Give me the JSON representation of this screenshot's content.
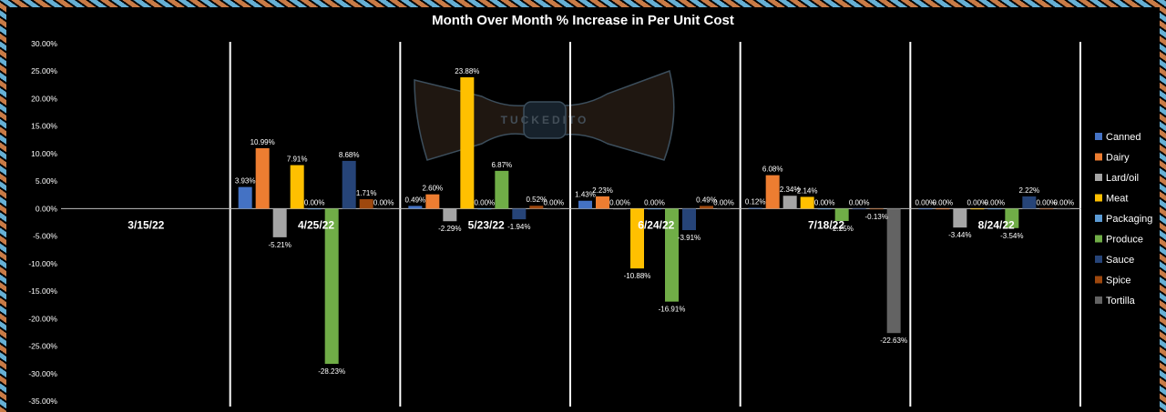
{
  "chart_data": {
    "type": "bar",
    "title": "Month Over Month % Increase in Per Unit Cost",
    "watermark": "TUCKEDITO",
    "xlabel": "",
    "ylabel": "",
    "ylim": [
      -35,
      30
    ],
    "yticks": [
      30,
      25,
      20,
      15,
      10,
      5,
      0,
      -5,
      -10,
      -15,
      -20,
      -25,
      -30,
      -35
    ],
    "ytick_labels": [
      "30.00%",
      "25.00%",
      "20.00%",
      "15.00%",
      "10.00%",
      "5.00%",
      "0.00%",
      "-5.00%",
      "-10.00%",
      "-15.00%",
      "-20.00%",
      "-25.00%",
      "-30.00%",
      "-35.00%"
    ],
    "legend_position": "right",
    "categories": [
      "3/15/22",
      "4/25/22",
      "5/23/22",
      "6/24/22",
      "7/18/22",
      "8/24/22"
    ],
    "series": [
      {
        "name": "Canned",
        "color": "#4472C4",
        "values": [
          null,
          3.93,
          0.49,
          1.43,
          0.12,
          0.0
        ],
        "labels": [
          "",
          "3.93%",
          "0.49%",
          "1.43%",
          "0.12%",
          "0.00%"
        ]
      },
      {
        "name": "Dairy",
        "color": "#ED7D31",
        "values": [
          null,
          10.99,
          2.6,
          2.23,
          6.08,
          0.0
        ],
        "labels": [
          "",
          "10.99%",
          "2.60%",
          "2.23%",
          "6.08%",
          "0.00%"
        ]
      },
      {
        "name": "Lard/oil",
        "color": "#A5A5A5",
        "values": [
          null,
          -5.21,
          -2.29,
          0.0,
          2.34,
          -3.44
        ],
        "labels": [
          "",
          "-5.21%",
          "-2.29%",
          "0.00%",
          "2.34%",
          "-3.44%"
        ]
      },
      {
        "name": "Meat",
        "color": "#FFC000",
        "values": [
          null,
          7.91,
          23.88,
          -10.88,
          2.14,
          0.0
        ],
        "labels": [
          "",
          "7.91%",
          "23.88%",
          "-10.88%",
          "2.14%",
          "0.00%"
        ]
      },
      {
        "name": "Packaging",
        "color": "#5B9BD5",
        "values": [
          null,
          0.0,
          0.0,
          0.0,
          0.0,
          0.0
        ],
        "labels": [
          "",
          "0.00%",
          "0.00%",
          "0.00%",
          "0.00%",
          "0.00%"
        ]
      },
      {
        "name": "Produce",
        "color": "#70AD47",
        "values": [
          null,
          -28.23,
          6.87,
          -16.91,
          -2.25,
          -3.54
        ],
        "labels": [
          "",
          "-28.23%",
          "6.87%",
          "-16.91%",
          "-2.25%",
          "-3.54%"
        ]
      },
      {
        "name": "Sauce",
        "color": "#264478",
        "values": [
          null,
          8.68,
          -1.94,
          -3.91,
          0.0,
          2.22
        ],
        "labels": [
          "",
          "8.68%",
          "-1.94%",
          "-3.91%",
          "0.00%",
          "2.22%"
        ]
      },
      {
        "name": "Spice",
        "color": "#9E480E",
        "values": [
          null,
          1.71,
          0.52,
          0.49,
          -0.13,
          0.0
        ],
        "labels": [
          "",
          "1.71%",
          "0.52%",
          "0.49%",
          "-0.13%",
          "0.00%"
        ]
      },
      {
        "name": "Tortilla",
        "color": "#636363",
        "values": [
          null,
          0.0,
          0.0,
          0.0,
          -22.63,
          0.0
        ],
        "labels": [
          "",
          "0.00%",
          "0.00%",
          "0.00%",
          "-22.63%",
          "0.00%"
        ]
      }
    ]
  }
}
